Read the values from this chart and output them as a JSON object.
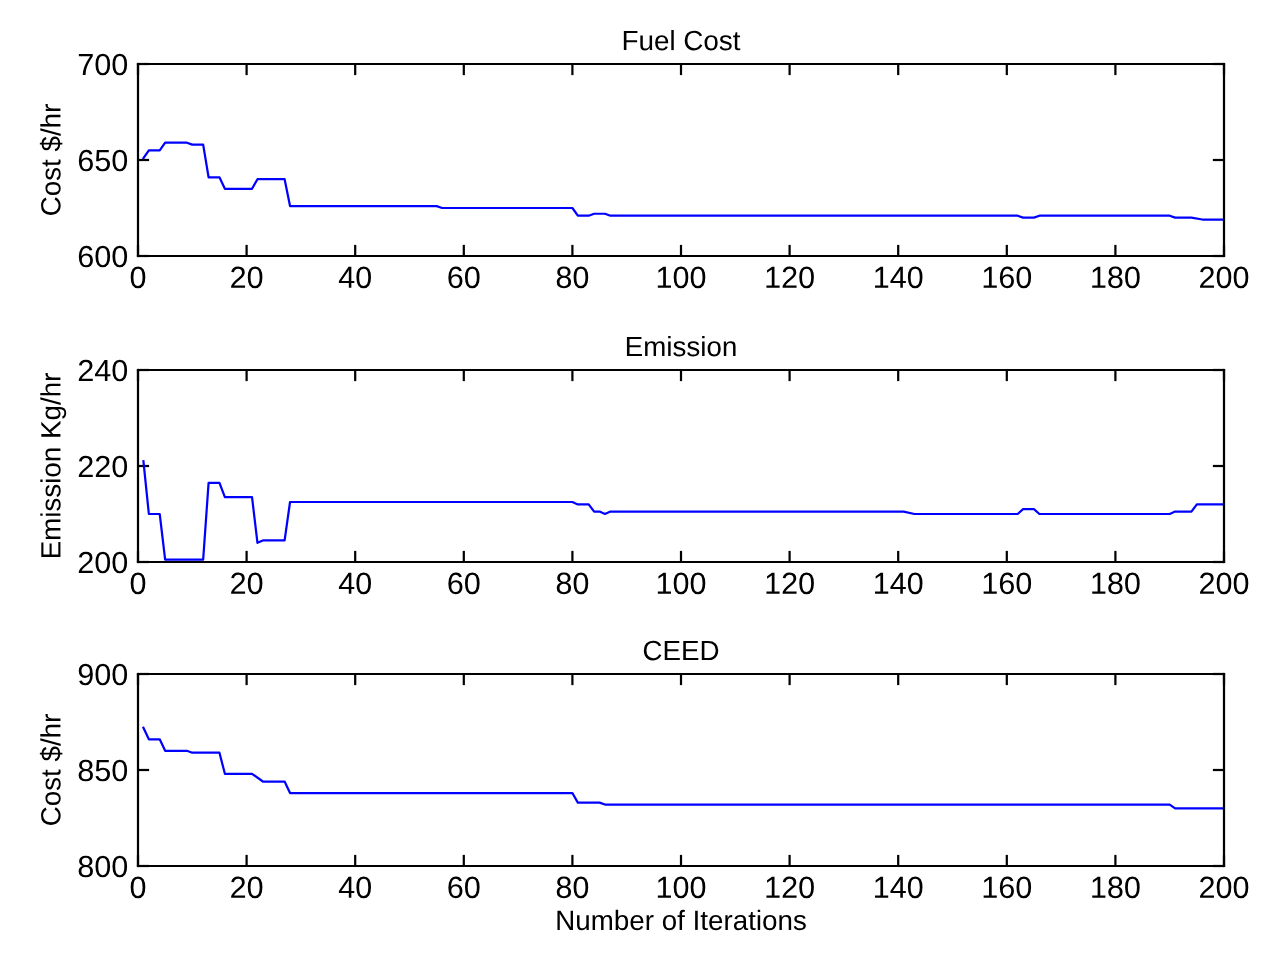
{
  "chart_data": [
    {
      "type": "line",
      "title": "Fuel Cost",
      "ylabel": "Cost $/hr",
      "xlim": [
        0,
        200
      ],
      "xticks": [
        0,
        20,
        40,
        60,
        80,
        100,
        120,
        140,
        160,
        180,
        200
      ],
      "ylim": [
        600,
        700
      ],
      "yticks": [
        600,
        650,
        700
      ],
      "series": [
        {
          "color": "#0000ff",
          "x": [
            1,
            2,
            4,
            5,
            9,
            10,
            12,
            13,
            15,
            16,
            21,
            22,
            27,
            28,
            55,
            56,
            80,
            81,
            83,
            84,
            86,
            87,
            162,
            163,
            165,
            166,
            190,
            191,
            194,
            196,
            200
          ],
          "values": [
            651,
            655,
            655,
            659,
            659,
            658,
            658,
            641,
            641,
            635,
            635,
            640,
            640,
            626,
            626,
            625,
            625,
            621,
            621,
            622,
            622,
            621,
            621,
            620,
            620,
            621,
            621,
            620,
            620,
            619,
            619
          ]
        }
      ]
    },
    {
      "type": "line",
      "title": "Emission",
      "ylabel": "Emission Kg/hr",
      "xlim": [
        0,
        200
      ],
      "xticks": [
        0,
        20,
        40,
        60,
        80,
        100,
        120,
        140,
        160,
        180,
        200
      ],
      "ylim": [
        200,
        240
      ],
      "yticks": [
        200,
        220,
        240
      ],
      "series": [
        {
          "color": "#0000ff",
          "x": [
            1,
            2,
            4,
            5,
            12,
            13,
            15,
            16,
            21,
            22,
            23,
            27,
            28,
            80,
            81,
            83,
            84,
            85,
            86,
            87,
            141,
            143,
            162,
            163,
            165,
            166,
            190,
            191,
            194,
            195,
            200
          ],
          "values": [
            221,
            210,
            210,
            200.5,
            200.5,
            216.5,
            216.5,
            213.5,
            213.5,
            204,
            204.5,
            204.5,
            212.5,
            212.5,
            212,
            212,
            210.5,
            210.5,
            210,
            210.5,
            210.5,
            210,
            210,
            211,
            211,
            210,
            210,
            210.5,
            210.5,
            212,
            212
          ]
        }
      ]
    },
    {
      "type": "line",
      "title": "CEED",
      "ylabel": "Cost $/hr",
      "xlabel": "Number of Iterations",
      "xlim": [
        0,
        200
      ],
      "xticks": [
        0,
        20,
        40,
        60,
        80,
        100,
        120,
        140,
        160,
        180,
        200
      ],
      "ylim": [
        800,
        900
      ],
      "yticks": [
        800,
        850,
        900
      ],
      "series": [
        {
          "color": "#0000ff",
          "x": [
            1,
            2,
            4,
            5,
            9,
            10,
            15,
            16,
            21,
            23,
            27,
            28,
            80,
            81,
            85,
            86,
            190,
            191,
            200
          ],
          "values": [
            872,
            866,
            866,
            860,
            860,
            859,
            859,
            848,
            848,
            844,
            844,
            838,
            838,
            833,
            833,
            832,
            832,
            830,
            830
          ]
        }
      ]
    }
  ]
}
